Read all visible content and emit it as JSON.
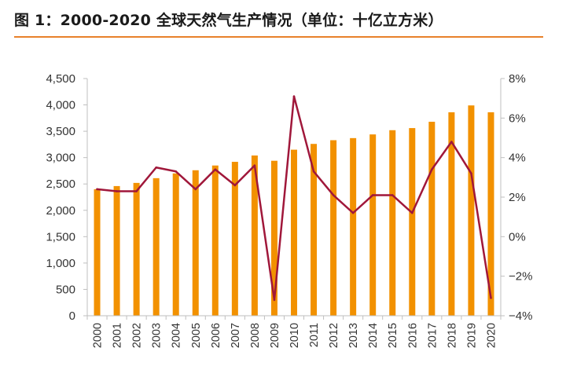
{
  "figure_title": "图 1：2000-2020 全球天然气生产情况（单位：十亿立方米）",
  "colors": {
    "bar": "#f29100",
    "line": "#a0173a",
    "rule": "#e8812a",
    "axis": "#bfbfbf"
  },
  "chart_data": {
    "type": "bar",
    "categories": [
      "2000",
      "2001",
      "2002",
      "2003",
      "2004",
      "2005",
      "2006",
      "2007",
      "2008",
      "2009",
      "2010",
      "2011",
      "2012",
      "2013",
      "2014",
      "2015",
      "2016",
      "2017",
      "2018",
      "2019",
      "2020"
    ],
    "series": [
      {
        "type": "bar",
        "axis": "left",
        "values": [
          2400,
          2460,
          2520,
          2610,
          2700,
          2760,
          2850,
          2920,
          3040,
          2940,
          3150,
          3260,
          3330,
          3370,
          3440,
          3520,
          3560,
          3680,
          3860,
          3990,
          3860
        ]
      },
      {
        "type": "line",
        "axis": "right",
        "values": [
          2.4,
          2.3,
          2.3,
          3.5,
          3.3,
          2.4,
          3.4,
          2.6,
          3.6,
          -3.2,
          7.1,
          3.3,
          2.1,
          1.2,
          2.1,
          2.1,
          1.2,
          3.4,
          4.8,
          3.2,
          -3.1
        ]
      }
    ],
    "y_left": {
      "range": [
        0,
        4500
      ],
      "ticks": [
        "0",
        "500",
        "1,000",
        "1,500",
        "2,000",
        "2,500",
        "3,000",
        "3,500",
        "4,000",
        "4,500"
      ]
    },
    "y_right": {
      "range": [
        -4,
        8
      ],
      "ticks": [
        "−4%",
        "−2%",
        "0%",
        "2%",
        "4%",
        "6%",
        "8%"
      ]
    },
    "grid": false,
    "legend": "none"
  }
}
